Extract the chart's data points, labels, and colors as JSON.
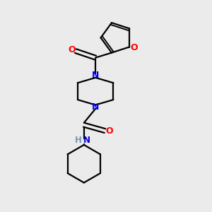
{
  "background_color": "#ebebeb",
  "bond_color": "#000000",
  "n_color": "#0000ff",
  "o_color": "#ff0000",
  "nh_n_color": "#0000cc",
  "nh_h_color": "#7799aa",
  "figsize": [
    3.0,
    3.0
  ],
  "dpi": 100,
  "xlim": [
    0,
    10
  ],
  "ylim": [
    0,
    10
  ]
}
